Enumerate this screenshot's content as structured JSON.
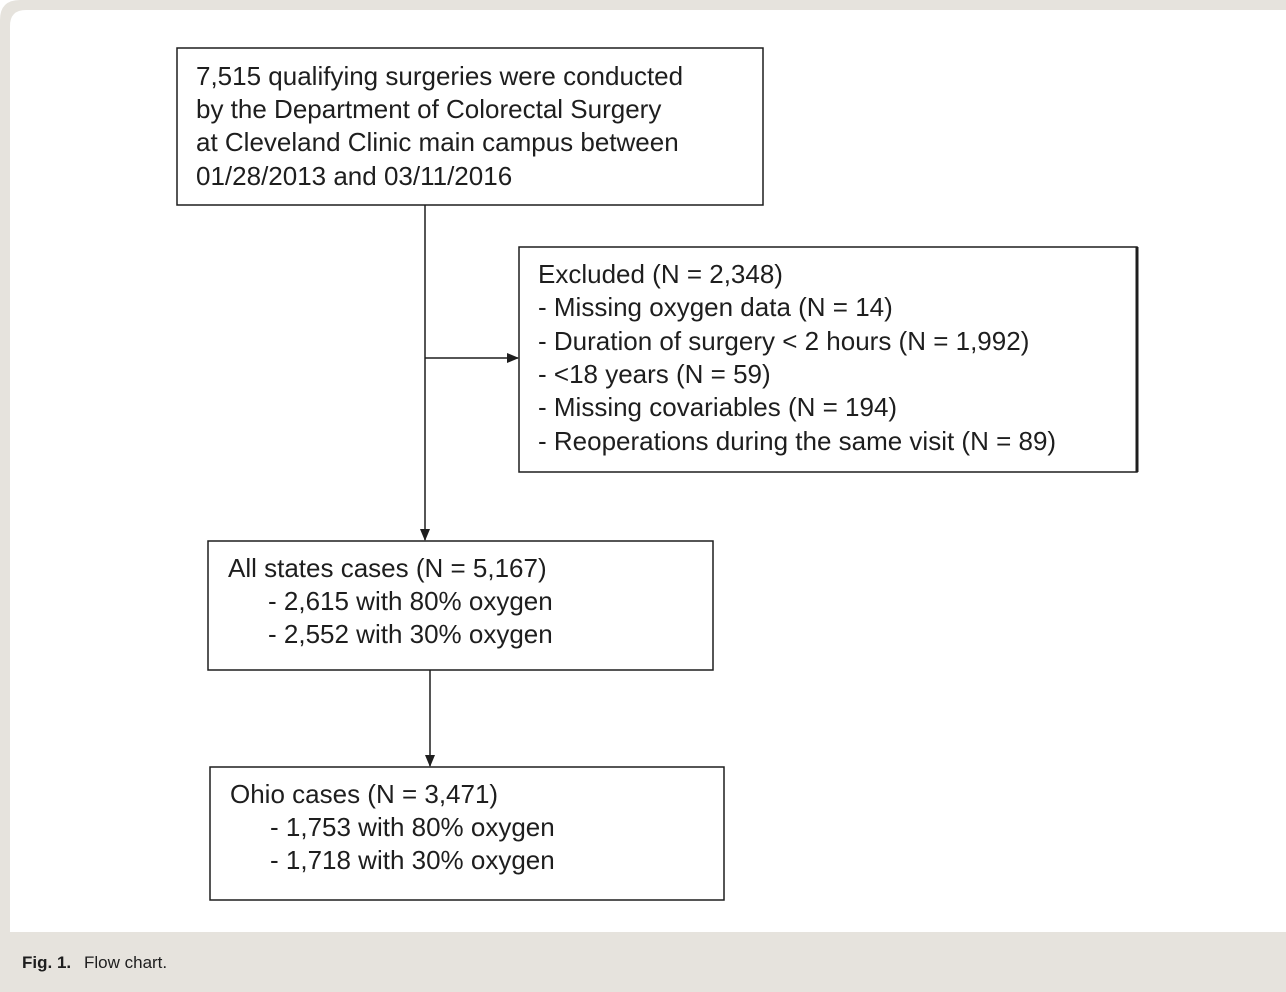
{
  "nodes": [
    {
      "lines": [
        "7,515 qualifying surgeries were conducted",
        "by the Department of Colorectal Surgery",
        "at Cleveland Clinic main campus between",
        "01/28/2013 and 03/11/2016"
      ]
    },
    {
      "lines": [
        "Excluded (N = 2,348)",
        "- Missing oxygen data (N = 14)",
        "- Duration of surgery < 2 hours (N = 1,992)",
        "- <18 years (N = 59)",
        "- Missing covariables (N = 194)",
        "- Reoperations during the same visit (N = 89)"
      ]
    },
    {
      "lines": [
        "All states cases (N = 5,167)",
        "- 2,615 with 80% oxygen",
        "- 2,552 with 30% oxygen"
      ]
    },
    {
      "lines": [
        "Ohio cases (N = 3,471)",
        "- 1,753 with 80% oxygen",
        "- 1,718 with 30% oxygen"
      ]
    }
  ],
  "caption": {
    "label": "Fig. 1.",
    "text": "Flow chart."
  }
}
